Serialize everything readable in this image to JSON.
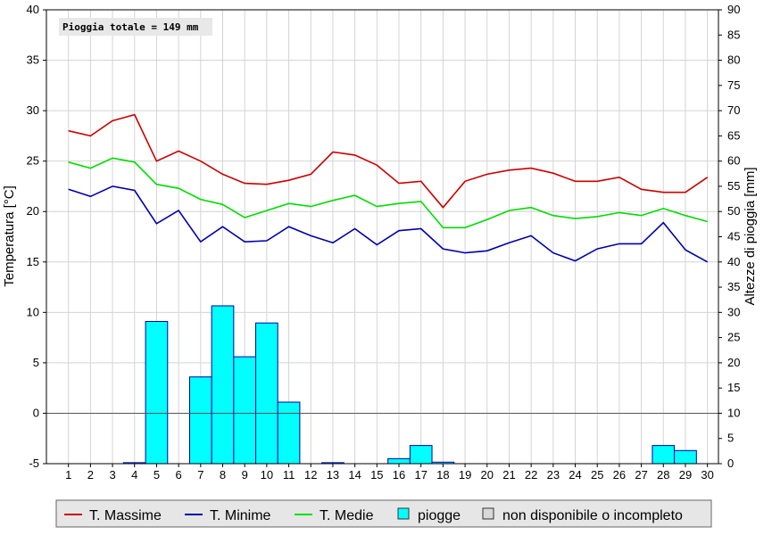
{
  "chart_data": {
    "type": "bar+line",
    "annotation": "Pioggia totale = 149 mm",
    "ylabel_left": "Temperatura [°C]",
    "ylabel_right": "Altezze di pioggia [mm]",
    "ylim_left": [
      -5,
      40
    ],
    "ylim_right": [
      0,
      90
    ],
    "grid": true,
    "legend_position": "bottom",
    "x": [
      1,
      2,
      3,
      4,
      5,
      6,
      7,
      8,
      9,
      10,
      11,
      12,
      13,
      14,
      15,
      16,
      17,
      18,
      19,
      20,
      21,
      22,
      23,
      24,
      25,
      26,
      27,
      28,
      29,
      30
    ],
    "series": [
      {
        "name": "T. Massime",
        "axis": "left",
        "color": "#cc0000",
        "values": [
          28.0,
          27.5,
          29.0,
          29.6,
          25.0,
          26.0,
          25.0,
          23.7,
          22.8,
          22.7,
          23.1,
          23.7,
          25.9,
          25.6,
          24.6,
          22.8,
          23.0,
          20.4,
          23.0,
          23.7,
          24.1,
          24.3,
          23.8,
          23.0,
          23.0,
          23.4,
          22.2,
          21.9,
          21.9,
          23.4
        ]
      },
      {
        "name": "T. Minime",
        "axis": "left",
        "color": "#0000aa",
        "values": [
          22.2,
          21.5,
          22.5,
          22.1,
          18.8,
          20.1,
          17.0,
          18.5,
          17.0,
          17.1,
          18.5,
          17.6,
          16.9,
          18.3,
          16.7,
          18.1,
          18.3,
          16.3,
          15.9,
          16.1,
          16.9,
          17.6,
          15.9,
          15.1,
          16.3,
          16.8,
          16.8,
          18.9,
          16.2,
          15.0
        ]
      },
      {
        "name": "T. Medie",
        "axis": "left",
        "color": "#00dd00",
        "values": [
          24.9,
          24.3,
          25.3,
          24.9,
          22.7,
          22.3,
          21.2,
          20.7,
          19.4,
          20.1,
          20.8,
          20.5,
          21.1,
          21.6,
          20.5,
          20.8,
          21.0,
          18.4,
          18.4,
          19.2,
          20.1,
          20.4,
          19.6,
          19.3,
          19.5,
          19.9,
          19.6,
          20.3,
          19.6,
          19.0
        ]
      },
      {
        "name": "piogge",
        "axis": "right",
        "color": "#00ffff",
        "bar": true,
        "values": [
          0,
          0,
          0,
          0.2,
          28.2,
          0,
          17.2,
          31.3,
          21.2,
          27.9,
          12.2,
          0,
          0.2,
          0,
          0,
          1.0,
          3.6,
          0.3,
          0,
          0,
          0,
          0,
          0,
          0,
          0,
          0,
          0,
          3.6,
          2.6,
          0
        ]
      },
      {
        "name": "non disponibile o incompleto",
        "axis": "right",
        "color": "#d8d8d8",
        "bar": true,
        "values": [
          0,
          0,
          0,
          0,
          0,
          0,
          0,
          0,
          0,
          0,
          0,
          0,
          0,
          0,
          0,
          0,
          0,
          0,
          0,
          0,
          0,
          0,
          0,
          0,
          0,
          0,
          0,
          0,
          0,
          0
        ]
      }
    ]
  }
}
